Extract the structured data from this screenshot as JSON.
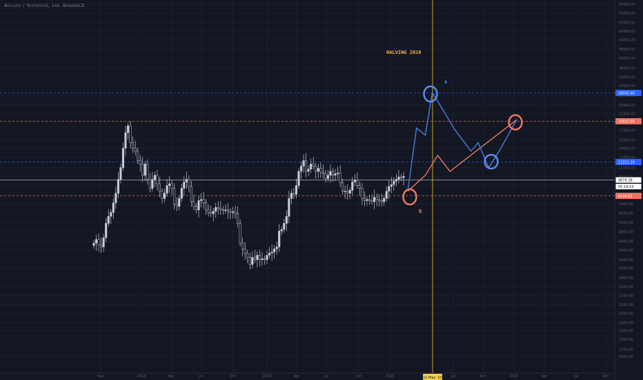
{
  "window": {
    "symbol_title": "Bitcoin / TetherUS, 1W, BINANCE"
  },
  "chart_data": {
    "type": "candlestick",
    "title": "Bitcoin / TetherUS, 1W, BINANCE",
    "y_scale": "log",
    "y_ticks": [
      84000,
      75000,
      67000,
      60000,
      54000,
      48000,
      43000,
      38000,
      34000,
      30500,
      27000,
      24000,
      21500,
      19500,
      17500,
      15500,
      14000,
      12500,
      11000,
      9800,
      8800,
      7850,
      7000,
      6250,
      5550,
      4950,
      4400,
      3950,
      3500,
      3150,
      2800,
      2500,
      2250,
      2000,
      1800,
      1600,
      1450,
      1300,
      1150,
      1050
    ],
    "y_tick_labels": [
      "84000.00",
      "75000.00",
      "67000.00",
      "60000.00",
      "54000.00",
      "48000.00",
      "43000.00",
      "38000.00",
      "34000.00",
      "30500.00",
      "27000.00",
      "24000.00",
      "21500.00",
      "19500.00",
      "17500.00",
      "15500.00",
      "14000.00",
      "12500.00",
      "11000.00",
      "9800.00",
      "8800.00",
      "7850.00",
      "7000.00",
      "6250.00",
      "5550.00",
      "4950.00",
      "4400.00",
      "3950.00",
      "3500.00",
      "3150.00",
      "2800.00",
      "2500.00",
      "2250.00",
      "2000.00",
      "1800.00",
      "1600.00",
      "1450.00",
      "1300.00",
      "1150.00",
      "1050.00"
    ],
    "x_tick_labels": [
      "Sep",
      "2018",
      "Apr",
      "Jul",
      "Oct",
      "2019",
      "Apr",
      "Jul",
      "Oct",
      "2020",
      "Jul",
      "Oct",
      "2021",
      "Apr",
      "Jul",
      "Oct"
    ],
    "x_highlight_label": "11 May '20",
    "closes": [
      4300,
      4500,
      4200,
      4100,
      4600,
      5500,
      6000,
      6300,
      7100,
      8000,
      9500,
      11000,
      14000,
      17000,
      18500,
      15000,
      14000,
      13500,
      12000,
      11500,
      10000,
      11500,
      9500,
      8500,
      9500,
      10000,
      9000,
      8200,
      7500,
      8000,
      8800,
      9000,
      8500,
      7000,
      6800,
      7500,
      8500,
      9200,
      9500,
      8700,
      7200,
      6800,
      6500,
      7300,
      7400,
      7100,
      6500,
      6300,
      6200,
      6400,
      6700,
      6600,
      6500,
      6450,
      6500,
      6400,
      6300,
      6350,
      6200,
      5500,
      4300,
      4000,
      3800,
      3600,
      3300,
      3600,
      3500,
      3700,
      3500,
      3550,
      3500,
      3700,
      3800,
      3850,
      4000,
      4100,
      5000,
      5100,
      5500,
      6000,
      7500,
      8000,
      7900,
      8800,
      10500,
      11200,
      12000,
      10500,
      10800,
      11500,
      11200,
      10500,
      10900,
      10400,
      10200,
      9600,
      10000,
      10500,
      10000,
      10200,
      10300,
      9100,
      8200,
      8200,
      8000,
      8300,
      9200,
      9400,
      8800,
      8500,
      7500,
      7300,
      7400,
      7300,
      7200,
      7600,
      7400,
      7300,
      7200,
      7500,
      8200,
      8700,
      8900,
      9300,
      9500,
      9800,
      9700,
      9879
    ],
    "annotations": {
      "title": "HALVING 2020",
      "label_a": "A",
      "label_b": "B"
    },
    "horizontal_levels": [
      {
        "label": "28045.60",
        "value": 28045.6,
        "color": "#2962ff"
      },
      {
        "label": "20027.04",
        "value": 20027.04,
        "color": "#ef6f5e"
      },
      {
        "label": "12221.19",
        "value": 12221.19,
        "color": "#2962ff"
      },
      {
        "label": "9879.38",
        "value": 9879.38,
        "color": "#ffffff"
      },
      {
        "label": "05:18:53",
        "value": null,
        "color": "#ffffff"
      },
      {
        "label": "8184.63",
        "value": 8184.63,
        "color": "#ef6f5e"
      }
    ],
    "projection_a": [
      [
        0,
        8200
      ],
      [
        5,
        18000
      ],
      [
        10,
        16500
      ],
      [
        14,
        28000
      ],
      [
        27,
        17500
      ],
      [
        36,
        13500
      ],
      [
        40,
        15000
      ],
      [
        46,
        11000
      ],
      [
        52,
        13500
      ],
      [
        62,
        20000
      ]
    ],
    "projection_b": [
      [
        0,
        8200
      ],
      [
        10,
        10000
      ],
      [
        17,
        12800
      ],
      [
        24,
        10500
      ],
      [
        62,
        20000
      ]
    ],
    "colors": {
      "background": "#131722",
      "candles": "#c8ccd6",
      "blue": "#4a7fe0",
      "orange": "#ef7a63",
      "halving_line": "#c9a227",
      "annotation_text": "#f0b34a"
    }
  }
}
